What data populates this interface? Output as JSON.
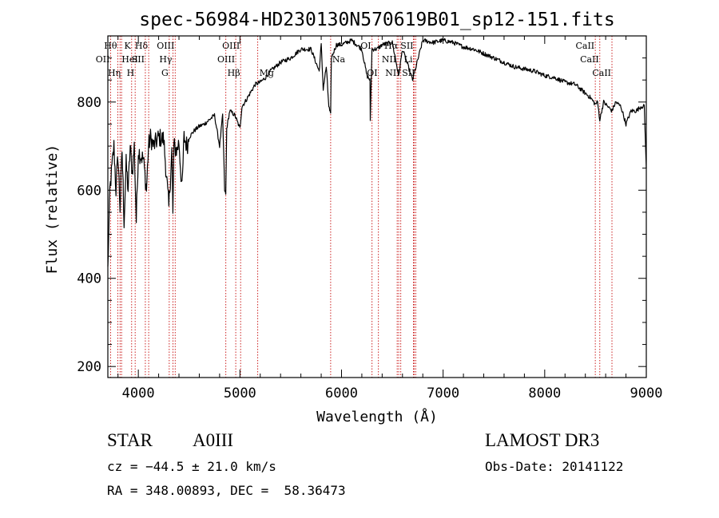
{
  "chart_data": {
    "type": "line",
    "title": "spec-56984-HD230130N570619B01_sp12-151.fits",
    "xlabel": "Wavelength (Å)",
    "ylabel": "Flux (relative)",
    "xlim": [
      3700,
      9000
    ],
    "ylim": [
      175,
      950
    ],
    "x_ticks": [
      4000,
      5000,
      6000,
      7000,
      8000,
      9000
    ],
    "x_tick_labels": [
      "4000",
      "5000",
      "6000",
      "7000",
      "8000",
      "9000"
    ],
    "y_ticks": [
      200,
      400,
      600,
      800
    ],
    "y_tick_labels": [
      "200",
      "400",
      "600",
      "800"
    ],
    "series": [
      {
        "name": "flux",
        "x": [
          3700,
          3720,
          3740,
          3760,
          3780,
          3800,
          3820,
          3840,
          3860,
          3880,
          3900,
          3920,
          3940,
          3960,
          3980,
          4000,
          4020,
          4050,
          4080,
          4100,
          4120,
          4150,
          4200,
          4250,
          4300,
          4330,
          4340,
          4350,
          4380,
          4400,
          4430,
          4450,
          4480,
          4500,
          4550,
          4600,
          4650,
          4700,
          4750,
          4800,
          4830,
          4850,
          4861,
          4870,
          4900,
          4950,
          5000,
          5020,
          5050,
          5100,
          5150,
          5200,
          5250,
          5300,
          5400,
          5500,
          5600,
          5700,
          5780,
          5800,
          5820,
          5850,
          5875,
          5893,
          5900,
          5950,
          6000,
          6100,
          6200,
          6250,
          6280,
          6283,
          6300,
          6350,
          6400,
          6500,
          6563,
          6600,
          6700,
          6800,
          6900,
          7000,
          7100,
          7200,
          7300,
          7400,
          7500,
          7600,
          7700,
          7800,
          7900,
          8000,
          8100,
          8200,
          8300,
          8400,
          8450,
          8498,
          8520,
          8542,
          8580,
          8620,
          8662,
          8700,
          8750,
          8800,
          8850,
          8900,
          8950,
          8980,
          9000
        ],
        "y": [
          420,
          600,
          650,
          700,
          600,
          680,
          560,
          690,
          530,
          660,
          600,
          700,
          640,
          700,
          530,
          690,
          680,
          670,
          600,
          700,
          720,
          700,
          720,
          715,
          560,
          690,
          540,
          700,
          690,
          710,
          600,
          720,
          700,
          720,
          735,
          745,
          750,
          760,
          770,
          700,
          770,
          600,
          590,
          740,
          780,
          770,
          740,
          790,
          800,
          820,
          840,
          845,
          855,
          870,
          890,
          900,
          920,
          920,
          870,
          930,
          830,
          880,
          790,
          770,
          900,
          930,
          930,
          940,
          920,
          860,
          850,
          760,
          920,
          920,
          930,
          935,
          860,
          920,
          850,
          940,
          935,
          940,
          935,
          925,
          920,
          910,
          900,
          890,
          880,
          875,
          870,
          860,
          855,
          845,
          840,
          820,
          810,
          795,
          800,
          760,
          800,
          790,
          780,
          800,
          790,
          750,
          780,
          780,
          790,
          790,
          650
        ]
      }
    ],
    "lines": [
      {
        "name": "OII",
        "wave": 3727,
        "label_row": 2,
        "label_side": "left"
      },
      {
        "name": "Hθ",
        "wave": 3798,
        "label_row": 1,
        "label_side": "left"
      },
      {
        "name": "HeI",
        "wave": 3820,
        "label_row": 2,
        "label_side": "right"
      },
      {
        "name": "Hη",
        "wave": 3835,
        "label_row": 3,
        "label_side": "left"
      },
      {
        "name": "K",
        "wave": 3934,
        "label_row": 1,
        "label_side": "left"
      },
      {
        "name": "SII",
        "wave": 4069,
        "label_row": 2,
        "label_side": "left"
      },
      {
        "name": "H",
        "wave": 3969,
        "label_row": 3,
        "label_side": "left"
      },
      {
        "name": "Hδ",
        "wave": 4102,
        "label_row": 1,
        "label_side": "left"
      },
      {
        "name": "OIII",
        "wave": 4363,
        "label_row": 1,
        "label_side": "left"
      },
      {
        "name": "Hγ",
        "wave": 4341,
        "label_row": 2,
        "label_side": "left"
      },
      {
        "name": "G",
        "wave": 4304,
        "label_row": 3,
        "label_side": "left"
      },
      {
        "name": "Hβ",
        "wave": 4861,
        "label_row": 3,
        "label_side": "right"
      },
      {
        "name": "OIII",
        "wave": 5007,
        "label_row": 1,
        "label_side": "left"
      },
      {
        "name": "OIII",
        "wave": 4959,
        "label_row": 2,
        "label_side": "left"
      },
      {
        "name": "Mg",
        "wave": 5175,
        "label_row": 3,
        "label_side": "right"
      },
      {
        "name": "Na",
        "wave": 5893,
        "label_row": 2,
        "label_side": "right"
      },
      {
        "name": "OI",
        "wave": 6300,
        "label_row": 1,
        "label_side": "left"
      },
      {
        "name": "OI",
        "wave": 6363,
        "label_row": 3,
        "label_side": "left"
      },
      {
        "name": "Hα",
        "wave": 6563,
        "label_row": 1,
        "label_side": "left"
      },
      {
        "name": "NII",
        "wave": 6548,
        "label_row": 2,
        "label_side": "left"
      },
      {
        "name": "NII",
        "wave": 6583,
        "label_row": 3,
        "label_side": "left"
      },
      {
        "name": "SII",
        "wave": 6716,
        "label_row": 1,
        "label_side": "left"
      },
      {
        "name": "Li",
        "wave": 6708,
        "label_row": 2,
        "label_side": "left"
      },
      {
        "name": "SII",
        "wave": 6731,
        "label_row": 3,
        "label_side": "left"
      },
      {
        "name": "CaII",
        "wave": 8498,
        "label_row": 1,
        "label_side": "left"
      },
      {
        "name": "CaII",
        "wave": 8542,
        "label_row": 2,
        "label_side": "left"
      },
      {
        "name": "CaII",
        "wave": 8662,
        "label_row": 3,
        "label_side": "left"
      }
    ],
    "line_color": "#cc2222",
    "curve_color": "#000000",
    "grid": false,
    "legend": "none"
  },
  "info": {
    "object_class": "STAR",
    "subclass": "A0III",
    "survey": "LAMOST DR3",
    "cz_text": "cz = −44.5 ± 21.0 km/s",
    "obs_date_text": "Obs-Date: 20141122",
    "radec_text": "RA = 348.00893, DEC =  58.36473"
  }
}
